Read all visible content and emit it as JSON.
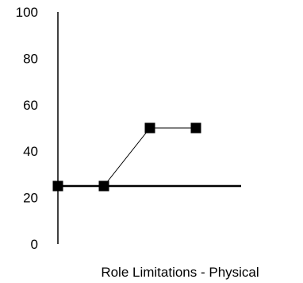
{
  "chart_data": {
    "type": "line",
    "title": "",
    "xlabel": "Role Limitations - Physical",
    "ylabel": "",
    "ylim": [
      0,
      100
    ],
    "yticks": [
      0,
      20,
      40,
      60,
      80,
      100
    ],
    "grid": false,
    "legend": "none",
    "x": [
      1,
      2,
      3,
      4
    ],
    "series": [
      {
        "values": [
          25,
          25,
          50,
          50
        ],
        "marker": "square",
        "color": "#000000"
      }
    ],
    "reference_line": {
      "y": 25,
      "color": "#000000"
    }
  }
}
